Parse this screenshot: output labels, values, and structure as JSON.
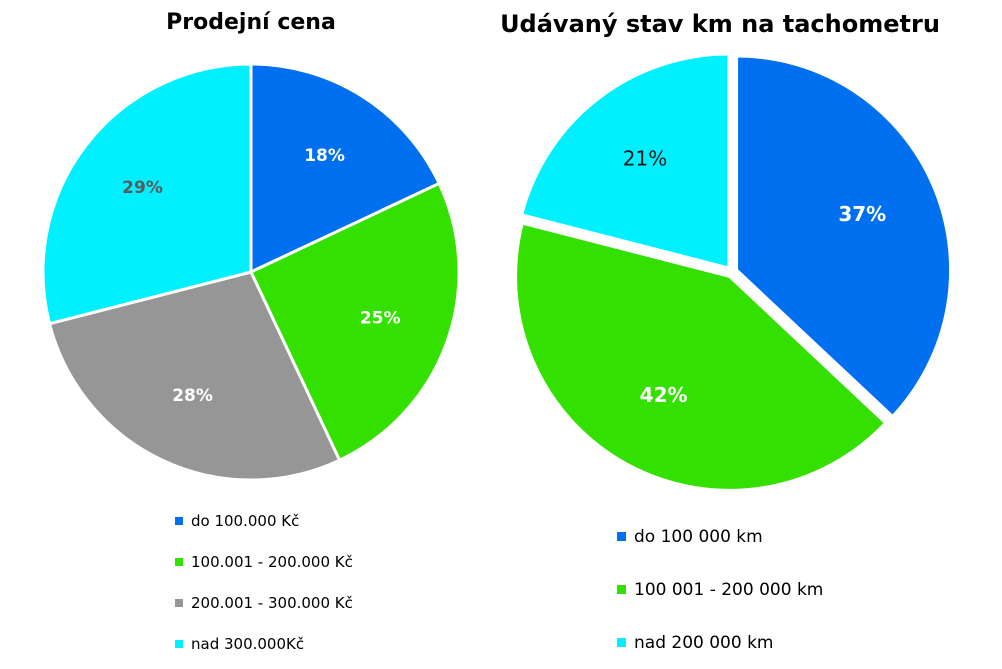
{
  "chart_data": [
    {
      "type": "pie",
      "title": "Prodejní cena",
      "categories": [
        "do 100.000 Kč",
        "100.001 - 200.000 Kč",
        "200.001 - 300.000 Kč",
        "nad 300.000Kč"
      ],
      "values": [
        18,
        25,
        28,
        29
      ],
      "labels": [
        "18%",
        "25%",
        "28%",
        "29%"
      ],
      "colors": [
        "#0070F0",
        "#33E000",
        "#969696",
        "#00F0FF"
      ],
      "label_colors": [
        "#ffffff",
        "#ffffff",
        "#ffffff",
        "#5a5a5a"
      ],
      "legend_position": "bottom"
    },
    {
      "type": "pie",
      "title": "Udávaný stav km na tachometru",
      "categories": [
        "do 100 000 km",
        "100 001 - 200 000 km",
        "nad 200 000 km"
      ],
      "values": [
        37,
        42,
        21
      ],
      "labels": [
        "37%",
        "42%",
        "21%"
      ],
      "colors": [
        "#0070F0",
        "#33E000",
        "#00F0FF"
      ],
      "label_colors": [
        "#ffffff",
        "#ffffff",
        "#1a1a1a"
      ],
      "legend_position": "bottom"
    }
  ]
}
